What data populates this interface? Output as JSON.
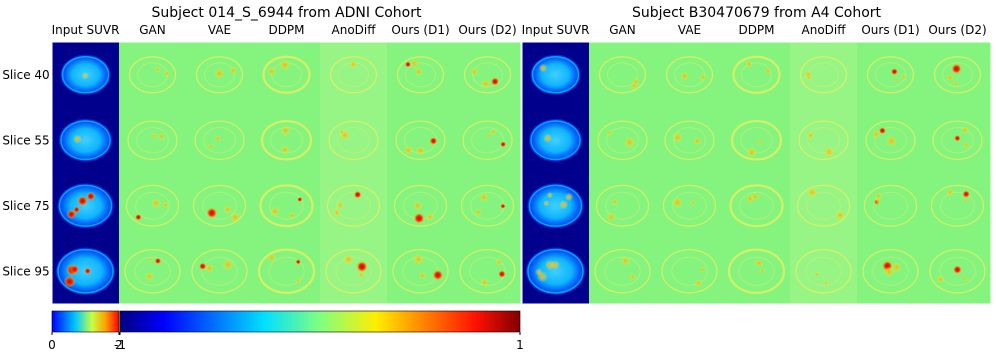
{
  "panels": [
    {
      "title": "Subject 014_S_6944 from ADNI Cohort",
      "columns": [
        "Input SUVR",
        "GAN",
        "VAE",
        "DDPM",
        "AnoDiff",
        "Ours (D1)",
        "Ours (D2)"
      ]
    },
    {
      "title": "Subject B30470679 from A4 Cohort",
      "columns": [
        "Input SUVR",
        "GAN",
        "VAE",
        "DDPM",
        "AnoDiff",
        "Ours (D1)",
        "Ours (D2)"
      ]
    }
  ],
  "rows": [
    "Slice 40",
    "Slice 55",
    "Slice 75",
    "Slice 95"
  ],
  "colorbars": [
    {
      "ticks": [
        0,
        2
      ]
    },
    {
      "ticks": [
        -1,
        1
      ]
    }
  ]
}
